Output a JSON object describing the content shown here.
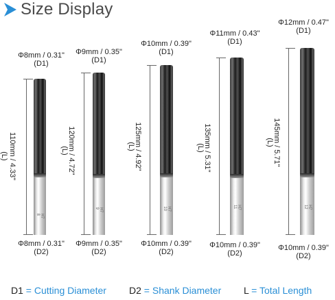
{
  "title": "Size Display",
  "colors": {
    "accent": "#2a8fd6",
    "title": "#4a4a4a"
  },
  "icons": {
    "title_arrow": "play-arrow-icon"
  },
  "tools": [
    {
      "d1": "Φ8mm / 0.31\"",
      "d1_code": "(D1)",
      "length": "110mm / 4.33\"",
      "length_code": "(L)",
      "d2": "Φ8mm / 0.31\"",
      "d2_code": "(D2)",
      "engraving": "H7 8"
    },
    {
      "d1": "Φ9mm / 0.35\"",
      "d1_code": "(D1)",
      "length": "120mm / 4.72\"",
      "length_code": "(L)",
      "d2": "Φ9mm / 0.35\"",
      "d2_code": "(D2)",
      "engraving": "H7 9"
    },
    {
      "d1": "Φ10mm / 0.39\"",
      "d1_code": "(D1)",
      "length": "125mm / 4.92\"",
      "length_code": "(L)",
      "d2": "Φ10mm / 0.39\"",
      "d2_code": "(D2)",
      "engraving": "H7 10"
    },
    {
      "d1": "Φ11mm / 0.43\"",
      "d1_code": "(D1)",
      "length": "135mm / 5.31\"",
      "length_code": "(L)",
      "d2": "Φ10mm / 0.39\"",
      "d2_code": "(D2)",
      "engraving": "H7 11"
    },
    {
      "d1": "Φ12mm / 0.47\"",
      "d1_code": "(D1)",
      "length": "145mm / 5.71\"",
      "length_code": "(L)",
      "d2": "Φ10mm / 0.39\"",
      "d2_code": "(D2)",
      "engraving": "H7 12"
    }
  ],
  "legend": [
    {
      "key": "D1",
      "eq": " = ",
      "value": "Cutting Diameter"
    },
    {
      "key": "D2",
      "eq": " = ",
      "value": "Shank Diameter"
    },
    {
      "key": "L",
      "eq": " = ",
      "value": "Total Length"
    }
  ]
}
